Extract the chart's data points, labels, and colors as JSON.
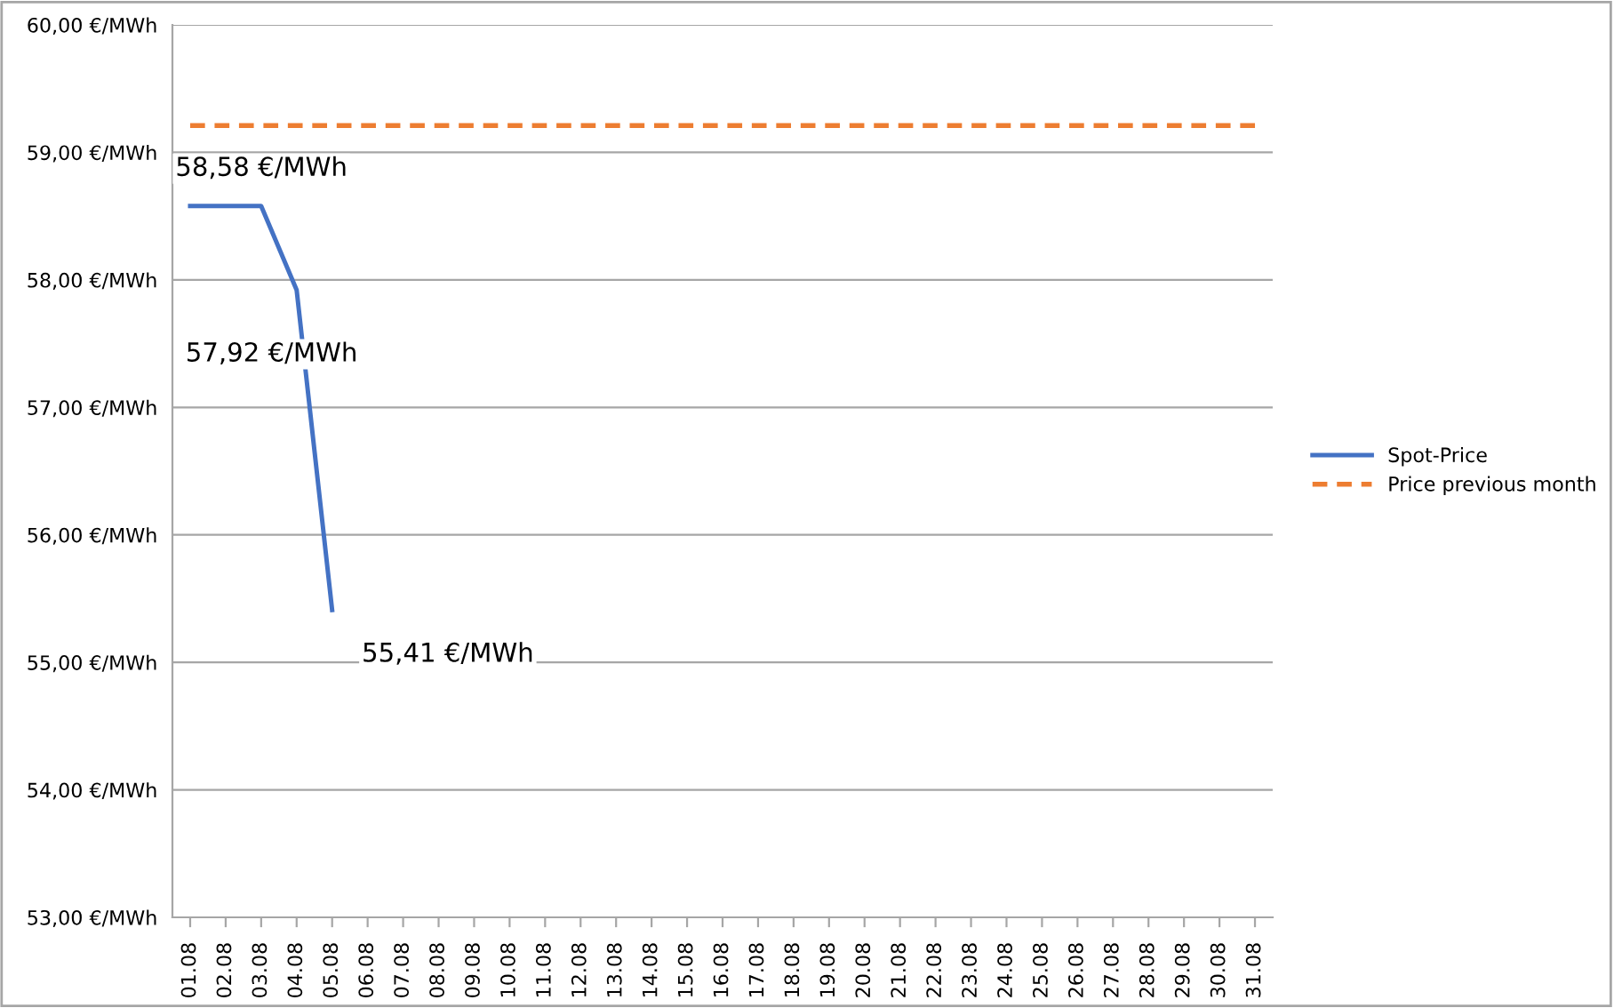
{
  "chart_data": {
    "type": "line",
    "categories": [
      "01.08",
      "02.08",
      "03.08",
      "04.08",
      "05.08",
      "06.08",
      "07.08",
      "08.08",
      "09.08",
      "10.08",
      "11.08",
      "12.08",
      "13.08",
      "14.08",
      "15.08",
      "16.08",
      "17.08",
      "18.08",
      "19.08",
      "20.08",
      "21.08",
      "22.08",
      "23.08",
      "24.08",
      "25.08",
      "26.08",
      "27.08",
      "28.08",
      "29.08",
      "30.08",
      "31.08"
    ],
    "series": [
      {
        "name": "Spot-Price",
        "color": "#4472c4",
        "line_style": "solid",
        "values": [
          58.58,
          58.58,
          58.58,
          57.92,
          55.41,
          null,
          null,
          null,
          null,
          null,
          null,
          null,
          null,
          null,
          null,
          null,
          null,
          null,
          null,
          null,
          null,
          null,
          null,
          null,
          null,
          null,
          null,
          null,
          null,
          null,
          null
        ],
        "value_labels": [
          "58,58 €/MWh",
          null,
          null,
          "57,92 €/MWh",
          "55,41 €/MWh",
          null,
          null,
          null,
          null,
          null,
          null,
          null,
          null,
          null,
          null,
          null,
          null,
          null,
          null,
          null,
          null,
          null,
          null,
          null,
          null,
          null,
          null,
          null,
          null,
          null,
          null
        ]
      },
      {
        "name": "Price previous month",
        "color": "#ed7d31",
        "line_style": "dashed",
        "values": [
          59.21,
          59.21,
          59.21,
          59.21,
          59.21,
          59.21,
          59.21,
          59.21,
          59.21,
          59.21,
          59.21,
          59.21,
          59.21,
          59.21,
          59.21,
          59.21,
          59.21,
          59.21,
          59.21,
          59.21,
          59.21,
          59.21,
          59.21,
          59.21,
          59.21,
          59.21,
          59.21,
          59.21,
          59.21,
          59.21,
          59.21
        ]
      }
    ],
    "ylim": [
      53,
      60
    ],
    "yticks": [
      {
        "value": 53,
        "label": "53,00 €/MWh"
      },
      {
        "value": 54,
        "label": "54,00 €/MWh"
      },
      {
        "value": 55,
        "label": "55,00 €/MWh"
      },
      {
        "value": 56,
        "label": "56,00 €/MWh"
      },
      {
        "value": 57,
        "label": "57,00 €/MWh"
      },
      {
        "value": 58,
        "label": "58,00 €/MWh"
      },
      {
        "value": 59,
        "label": "59,00 €/MWh"
      },
      {
        "value": 60,
        "label": "60,00 €/MWh"
      }
    ],
    "grid": "y",
    "legend": "right",
    "marker": "none"
  }
}
